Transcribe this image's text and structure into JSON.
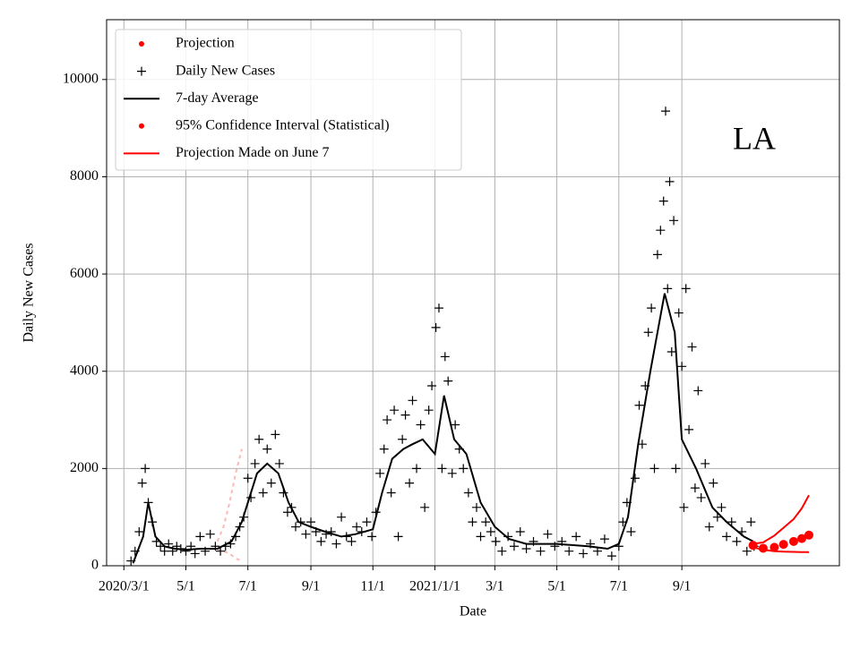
{
  "chart_data": {
    "type": "scatter",
    "xlabel": "Date",
    "ylabel": "Daily New Cases",
    "annotation": "LA",
    "grid": true,
    "legend": "upper left",
    "xlim": [
      "2020-02-13",
      "2022-02-03"
    ],
    "xticks": [
      {
        "value": "2020-03-01",
        "label": "2020/3/1"
      },
      {
        "value": "2020-05-01",
        "label": "5/1"
      },
      {
        "value": "2020-07-01",
        "label": "7/1"
      },
      {
        "value": "2020-09-01",
        "label": "9/1"
      },
      {
        "value": "2020-11-01",
        "label": "11/1"
      },
      {
        "value": "2021-01-01",
        "label": "2021/1/1"
      },
      {
        "value": "2021-03-01",
        "label": "3/1"
      },
      {
        "value": "2021-05-01",
        "label": "5/1"
      },
      {
        "value": "2021-07-01",
        "label": "7/1"
      },
      {
        "value": "2021-09-01",
        "label": "9/1"
      }
    ],
    "ylim": [
      0,
      11230
    ],
    "yticks": [
      0,
      2000,
      4000,
      6000,
      8000,
      10000
    ],
    "series": [
      {
        "name": "Projection",
        "kind": "dots",
        "color": "#ff0000",
        "x": [
          "2021-11-10",
          "2021-11-20",
          "2021-12-01",
          "2021-12-10",
          "2021-12-20",
          "2021-12-28",
          "2022-01-04"
        ],
        "values": [
          420,
          360,
          380,
          440,
          500,
          560,
          630
        ]
      },
      {
        "name": "Daily New Cases",
        "kind": "plus",
        "color": "#000000",
        "x": [
          "2020-03-08",
          "2020-03-12",
          "2020-03-16",
          "2020-03-19",
          "2020-03-22",
          "2020-03-25",
          "2020-03-29",
          "2020-04-02",
          "2020-04-06",
          "2020-04-10",
          "2020-04-14",
          "2020-04-18",
          "2020-04-22",
          "2020-04-26",
          "2020-05-01",
          "2020-05-06",
          "2020-05-10",
          "2020-05-15",
          "2020-05-20",
          "2020-05-25",
          "2020-05-30",
          "2020-06-04",
          "2020-06-09",
          "2020-06-14",
          "2020-06-19",
          "2020-06-23",
          "2020-06-27",
          "2020-07-01",
          "2020-07-04",
          "2020-07-08",
          "2020-07-12",
          "2020-07-16",
          "2020-07-20",
          "2020-07-24",
          "2020-07-28",
          "2020-08-01",
          "2020-08-05",
          "2020-08-09",
          "2020-08-13",
          "2020-08-17",
          "2020-08-22",
          "2020-08-27",
          "2020-09-01",
          "2020-09-06",
          "2020-09-11",
          "2020-09-16",
          "2020-09-21",
          "2020-09-26",
          "2020-10-01",
          "2020-10-06",
          "2020-10-11",
          "2020-10-16",
          "2020-10-21",
          "2020-10-26",
          "2020-10-31",
          "2020-11-04",
          "2020-11-08",
          "2020-11-12",
          "2020-11-15",
          "2020-11-19",
          "2020-11-22",
          "2020-11-26",
          "2020-11-30",
          "2020-12-03",
          "2020-12-07",
          "2020-12-10",
          "2020-12-14",
          "2020-12-18",
          "2020-12-22",
          "2020-12-26",
          "2020-12-29",
          "2021-01-02",
          "2021-01-05",
          "2021-01-08",
          "2021-01-11",
          "2021-01-14",
          "2021-01-18",
          "2021-01-21",
          "2021-01-25",
          "2021-01-29",
          "2021-02-03",
          "2021-02-07",
          "2021-02-11",
          "2021-02-15",
          "2021-02-20",
          "2021-02-25",
          "2021-03-02",
          "2021-03-08",
          "2021-03-14",
          "2021-03-20",
          "2021-03-26",
          "2021-04-01",
          "2021-04-08",
          "2021-04-15",
          "2021-04-22",
          "2021-04-29",
          "2021-05-06",
          "2021-05-13",
          "2021-05-20",
          "2021-05-27",
          "2021-06-03",
          "2021-06-10",
          "2021-06-17",
          "2021-06-24",
          "2021-07-01",
          "2021-07-05",
          "2021-07-09",
          "2021-07-13",
          "2021-07-17",
          "2021-07-21",
          "2021-07-24",
          "2021-07-27",
          "2021-07-30",
          "2021-08-02",
          "2021-08-05",
          "2021-08-08",
          "2021-08-11",
          "2021-08-14",
          "2021-08-16",
          "2021-08-18",
          "2021-08-20",
          "2021-08-22",
          "2021-08-24",
          "2021-08-26",
          "2021-08-29",
          "2021-09-01",
          "2021-09-03",
          "2021-09-05",
          "2021-09-08",
          "2021-09-11",
          "2021-09-14",
          "2021-09-17",
          "2021-09-20",
          "2021-09-24",
          "2021-09-28",
          "2021-10-02",
          "2021-10-06",
          "2021-10-10",
          "2021-10-15",
          "2021-10-20",
          "2021-10-25",
          "2021-10-30",
          "2021-11-04",
          "2021-11-08",
          "2021-11-11"
        ],
        "values": [
          100,
          300,
          700,
          1700,
          2000,
          1300,
          900,
          500,
          400,
          300,
          450,
          300,
          400,
          350,
          300,
          400,
          250,
          600,
          300,
          650,
          400,
          300,
          400,
          450,
          600,
          800,
          1000,
          1800,
          1400,
          2100,
          2600,
          1500,
          2400,
          1700,
          2700,
          2100,
          1500,
          1100,
          1200,
          800,
          900,
          650,
          900,
          700,
          500,
          650,
          700,
          450,
          1000,
          600,
          500,
          800,
          700,
          900,
          600,
          1100,
          1900,
          2400,
          3000,
          1500,
          3200,
          600,
          2600,
          3100,
          1700,
          3400,
          2000,
          2900,
          1200,
          3200,
          3700,
          4900,
          5300,
          2000,
          4300,
          3800,
          1900,
          2900,
          2400,
          2000,
          1500,
          900,
          1200,
          600,
          900,
          700,
          500,
          300,
          600,
          400,
          700,
          350,
          500,
          300,
          650,
          400,
          500,
          300,
          600,
          250,
          450,
          300,
          550,
          200,
          400,
          900,
          1300,
          700,
          1800,
          3300,
          2500,
          3700,
          4800,
          5300,
          2000,
          6400,
          6900,
          7500,
          9350,
          5700,
          7900,
          4400,
          7100,
          2000,
          5200,
          4100,
          1200,
          5700,
          2800,
          4500,
          1600,
          3600,
          1400,
          2100,
          800,
          1700,
          1000,
          1200,
          600,
          900,
          500,
          700,
          300,
          900,
          400
        ]
      },
      {
        "name": "7-day Average",
        "kind": "line",
        "color": "#000000",
        "x": [
          "2020-03-10",
          "2020-03-20",
          "2020-03-25",
          "2020-04-01",
          "2020-04-10",
          "2020-04-20",
          "2020-05-01",
          "2020-05-15",
          "2020-06-01",
          "2020-06-15",
          "2020-06-25",
          "2020-07-01",
          "2020-07-10",
          "2020-07-20",
          "2020-07-31",
          "2020-08-10",
          "2020-08-20",
          "2020-09-01",
          "2020-09-15",
          "2020-10-01",
          "2020-10-15",
          "2020-11-01",
          "2020-11-10",
          "2020-11-20",
          "2020-12-01",
          "2020-12-10",
          "2020-12-20",
          "2021-01-01",
          "2021-01-10",
          "2021-01-20",
          "2021-02-01",
          "2021-02-15",
          "2021-03-01",
          "2021-03-15",
          "2021-04-01",
          "2021-05-01",
          "2021-06-01",
          "2021-06-20",
          "2021-07-01",
          "2021-07-10",
          "2021-07-20",
          "2021-08-01",
          "2021-08-15",
          "2021-08-25",
          "2021-09-01",
          "2021-09-15",
          "2021-10-01",
          "2021-10-15",
          "2021-11-01",
          "2021-11-10"
        ],
        "values": [
          50,
          600,
          1300,
          600,
          400,
          350,
          330,
          350,
          350,
          500,
          900,
          1300,
          1900,
          2100,
          1900,
          1300,
          900,
          800,
          700,
          600,
          650,
          750,
          1500,
          2200,
          2400,
          2500,
          2600,
          2300,
          3500,
          2600,
          2300,
          1300,
          800,
          550,
          450,
          450,
          400,
          350,
          450,
          1000,
          2500,
          4000,
          5600,
          4800,
          2600,
          2000,
          1200,
          900,
          600,
          500
        ]
      },
      {
        "name": "95% Confidence Interval (Statistical)",
        "kind": "band",
        "color": "#ffb6b6",
        "x": [
          "2020-06-01",
          "2020-06-07",
          "2020-06-13",
          "2020-06-19",
          "2020-06-25"
        ],
        "values": [
          500,
          800,
          1300,
          1900,
          2400
        ],
        "lower": [
          350,
          300,
          250,
          150,
          100
        ]
      },
      {
        "name": "Projection Made on June 7",
        "kind": "range",
        "color": "#ff0000",
        "x": [
          "2021-11-10",
          "2021-11-20",
          "2021-12-01",
          "2021-12-10",
          "2021-12-20",
          "2021-12-28",
          "2022-01-04"
        ],
        "values": [
          450,
          480,
          620,
          780,
          960,
          1180,
          1450
        ],
        "lower": [
          380,
          330,
          300,
          290,
          285,
          280,
          280
        ]
      }
    ]
  }
}
